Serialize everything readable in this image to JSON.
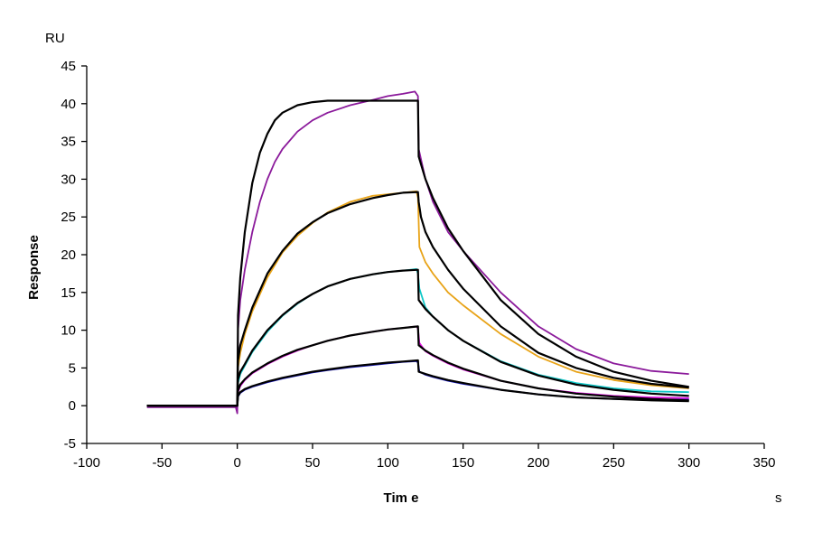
{
  "chart_data": {
    "type": "line",
    "title": "",
    "xlabel": "Tim e",
    "xunit": "s",
    "ylabel": "Response",
    "yunit": "RU",
    "xlim": [
      -100,
      350
    ],
    "ylim": [
      -5,
      45
    ],
    "xticks": [
      -100,
      -50,
      0,
      50,
      100,
      150,
      200,
      250,
      300,
      350
    ],
    "yticks": [
      -5,
      0,
      5,
      10,
      15,
      20,
      25,
      30,
      35,
      40,
      45
    ],
    "grid": false,
    "legend": "none",
    "fit_color": "#000000",
    "series": [
      {
        "kind": "data",
        "color": "#8b1a9b",
        "x": [
          -60,
          -1,
          0,
          0.5,
          2,
          5,
          10,
          15,
          20,
          25,
          30,
          40,
          50,
          60,
          75,
          90,
          100,
          110,
          118,
          120,
          120.5,
          125,
          130,
          140,
          150,
          175,
          200,
          225,
          250,
          275,
          300
        ],
        "y": [
          -0.2,
          -0.2,
          -1,
          10,
          14,
          18,
          23,
          27,
          30,
          32.3,
          34,
          36.3,
          37.8,
          38.8,
          39.8,
          40.5,
          41,
          41.3,
          41.6,
          41,
          34,
          30,
          27,
          23,
          20.5,
          15,
          10.5,
          7.5,
          5.6,
          4.6,
          4.2
        ]
      },
      {
        "kind": "data",
        "color": "#e8a317",
        "x": [
          -60,
          0,
          0.5,
          2,
          5,
          10,
          20,
          30,
          40,
          50,
          60,
          75,
          90,
          100,
          110,
          119,
          120,
          121,
          125,
          130,
          140,
          150,
          175,
          200,
          225,
          250,
          275,
          300
        ],
        "y": [
          0,
          0,
          5,
          7,
          9.5,
          12.5,
          17,
          20.3,
          22.5,
          24.2,
          25.6,
          27,
          27.8,
          28,
          28.2,
          28.4,
          27.5,
          21,
          19,
          17.5,
          15,
          13.3,
          9.5,
          6.5,
          4.5,
          3.4,
          2.7,
          2.3
        ]
      },
      {
        "kind": "data",
        "color": "#10c8c8",
        "x": [
          -60,
          0,
          0.5,
          2,
          5,
          10,
          20,
          30,
          40,
          50,
          60,
          75,
          90,
          100,
          110,
          119,
          120,
          121,
          125,
          130,
          140,
          150,
          175,
          200,
          225,
          250,
          275,
          300
        ],
        "y": [
          0,
          0,
          3,
          4.2,
          5.3,
          7.1,
          9.8,
          11.9,
          13.5,
          14.8,
          15.8,
          16.8,
          17.4,
          17.7,
          17.9,
          18.1,
          17.5,
          15.5,
          13,
          11.8,
          10,
          8.6,
          5.9,
          4.1,
          3,
          2.3,
          1.9,
          1.8
        ]
      },
      {
        "kind": "data",
        "color": "#e010e0",
        "x": [
          -60,
          0,
          0.5,
          2,
          5,
          10,
          20,
          30,
          40,
          50,
          60,
          75,
          90,
          100,
          110,
          119,
          120,
          121,
          125,
          130,
          140,
          150,
          175,
          200,
          225,
          250,
          275,
          300
        ],
        "y": [
          0,
          0,
          1.8,
          2.6,
          3.4,
          4.3,
          5.5,
          6.5,
          7.3,
          8,
          8.6,
          9.3,
          9.8,
          10.1,
          10.3,
          10.5,
          10.2,
          8.3,
          7.2,
          6.6,
          5.6,
          4.8,
          3.3,
          2.3,
          1.7,
          1.3,
          1.1,
          1
        ]
      },
      {
        "kind": "data",
        "color": "#1818c0",
        "x": [
          -60,
          0,
          0.5,
          2,
          5,
          10,
          20,
          30,
          40,
          50,
          60,
          75,
          90,
          100,
          110,
          119,
          120,
          121,
          125,
          130,
          140,
          150,
          175,
          200,
          225,
          250,
          275,
          300
        ],
        "y": [
          0,
          0,
          1.2,
          1.7,
          2.1,
          2.5,
          3.1,
          3.6,
          4,
          4.4,
          4.7,
          5.1,
          5.4,
          5.6,
          5.8,
          5.9,
          5.7,
          4.5,
          4.1,
          3.8,
          3.3,
          2.9,
          2.1,
          1.5,
          1.1,
          0.9,
          0.8,
          0.8
        ]
      },
      {
        "kind": "fit",
        "color": "#000000",
        "x": [
          -60,
          0,
          0.5,
          2,
          5,
          10,
          15,
          20,
          25,
          30,
          40,
          50,
          60,
          75,
          90,
          100,
          119,
          120,
          120.5,
          125,
          130,
          140,
          150,
          175,
          200,
          225,
          250,
          275,
          300
        ],
        "y": [
          0,
          0,
          12,
          17,
          23,
          29.5,
          33.5,
          36,
          37.8,
          38.8,
          39.8,
          40.2,
          40.4,
          40.4,
          40.4,
          40.4,
          40.4,
          40.4,
          33,
          30,
          27.5,
          23.5,
          20.5,
          14,
          9.5,
          6.5,
          4.5,
          3.3,
          2.5
        ]
      },
      {
        "kind": "fit",
        "color": "#000000",
        "x": [
          -60,
          0,
          0.5,
          2,
          5,
          10,
          20,
          30,
          40,
          50,
          60,
          75,
          90,
          100,
          110,
          120,
          120.5,
          122,
          125,
          130,
          140,
          150,
          175,
          200,
          225,
          250,
          275,
          300
        ],
        "y": [
          0,
          0,
          6,
          8,
          10,
          13,
          17.5,
          20.5,
          22.8,
          24.3,
          25.5,
          26.7,
          27.5,
          27.9,
          28.2,
          28.3,
          27,
          25,
          23,
          21,
          18,
          15.5,
          10.5,
          7,
          5,
          3.7,
          2.9,
          2.4
        ]
      },
      {
        "kind": "fit",
        "color": "#000000",
        "x": [
          -60,
          0,
          0.5,
          2,
          5,
          10,
          20,
          30,
          40,
          50,
          60,
          75,
          90,
          100,
          110,
          120,
          120.5,
          125,
          130,
          140,
          150,
          175,
          200,
          225,
          250,
          275,
          300
        ],
        "y": [
          0,
          0,
          3.5,
          4.5,
          5.5,
          7.3,
          10,
          12,
          13.6,
          14.8,
          15.8,
          16.8,
          17.4,
          17.7,
          17.9,
          18,
          14,
          12.8,
          11.8,
          10,
          8.6,
          5.8,
          4,
          2.8,
          2.1,
          1.6,
          1.3
        ]
      },
      {
        "kind": "fit",
        "color": "#000000",
        "x": [
          -60,
          0,
          0.5,
          2,
          5,
          10,
          20,
          30,
          40,
          50,
          60,
          75,
          90,
          100,
          110,
          120,
          120.5,
          125,
          130,
          140,
          150,
          175,
          200,
          225,
          250,
          275,
          300
        ],
        "y": [
          0,
          0,
          2,
          2.8,
          3.5,
          4.4,
          5.6,
          6.6,
          7.4,
          8,
          8.6,
          9.3,
          9.8,
          10.1,
          10.3,
          10.5,
          8,
          7.3,
          6.7,
          5.7,
          4.9,
          3.3,
          2.3,
          1.6,
          1.2,
          0.9,
          0.7
        ]
      },
      {
        "kind": "fit",
        "color": "#000000",
        "x": [
          -60,
          0,
          0.5,
          2,
          5,
          10,
          20,
          30,
          40,
          50,
          60,
          75,
          90,
          100,
          110,
          120,
          120.5,
          125,
          130,
          140,
          150,
          175,
          200,
          225,
          250,
          275,
          300
        ],
        "y": [
          0,
          0,
          1.3,
          1.8,
          2.2,
          2.6,
          3.2,
          3.7,
          4.1,
          4.5,
          4.8,
          5.2,
          5.5,
          5.7,
          5.85,
          6,
          4.5,
          4.2,
          3.9,
          3.4,
          3,
          2.1,
          1.5,
          1.1,
          0.9,
          0.7,
          0.6
        ]
      }
    ]
  }
}
